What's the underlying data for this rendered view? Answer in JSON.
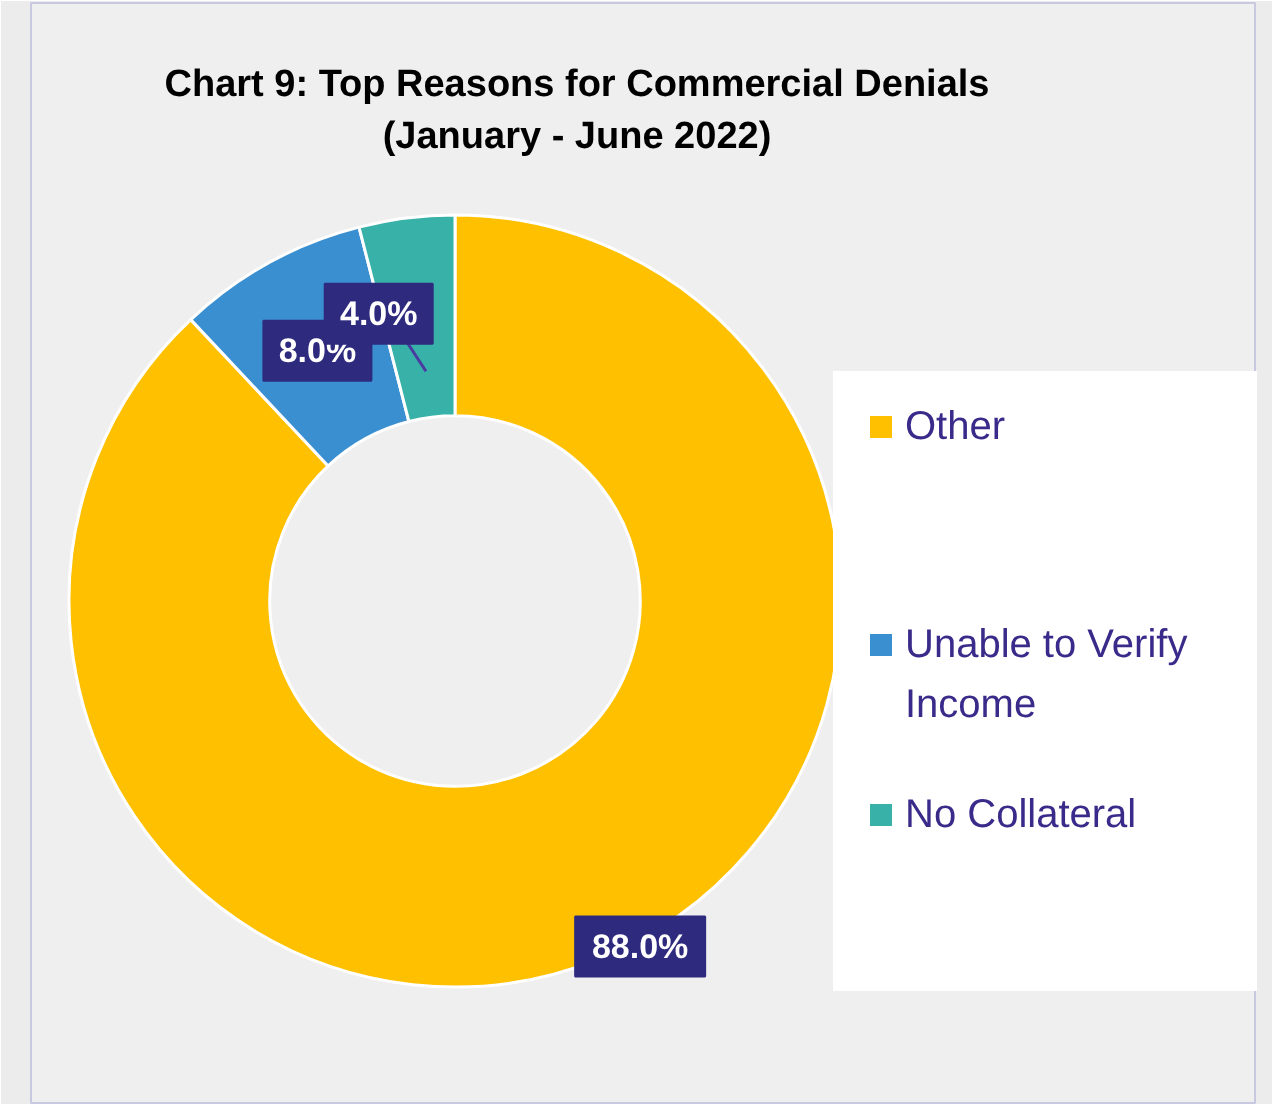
{
  "chart_data": {
    "type": "donut",
    "title": "Chart 9: Top Reasons for Commercial Denials\n(January - June 2022)",
    "categories": [
      "Other",
      "Unable to Verify Income",
      "No Collateral"
    ],
    "values": [
      88,
      8,
      4
    ],
    "colors": [
      "#ffc000",
      "#3a8fd0",
      "#38b1a8"
    ],
    "value_labels": [
      "88.0%",
      "8.0%",
      "4.0%"
    ],
    "legend": "right"
  }
}
